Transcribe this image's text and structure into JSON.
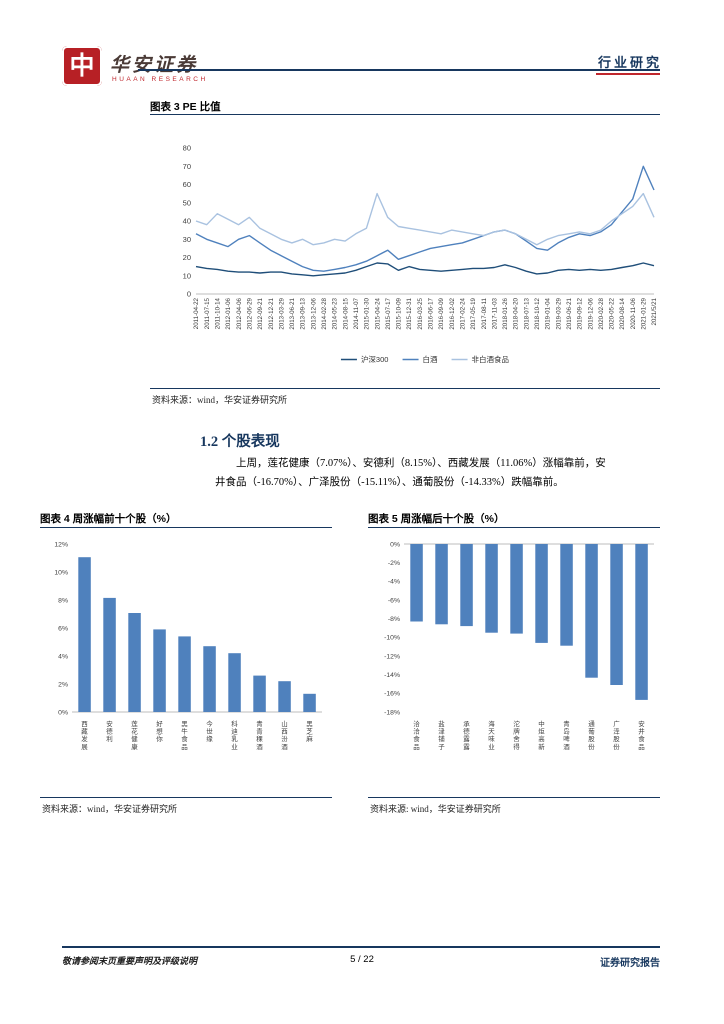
{
  "header": {
    "logo_char": "中",
    "brand_cn": "华安证券",
    "brand_en": "HUAAN RESEARCH",
    "report_type": "行业研究"
  },
  "section": {
    "heading": "1.2 个股表现",
    "paragraph": "上周，莲花健康（7.07%）、安德利（8.15%）、西藏发展（11.06%）涨幅靠前，安井食品（-16.70%）、广泽股份（-15.11%）、通葡股份（-14.33%）跌幅靠前。"
  },
  "sources": {
    "chart3": "资料来源：wind，华安证券研究所",
    "chart4": "资料来源：wind，华安证券研究所",
    "chart5": "资料来源: wind，华安证券研究所"
  },
  "footer": {
    "left": "敬请参阅末页重要声明及评级说明",
    "page": "5 / 22",
    "right": "证券研究报告"
  },
  "chart_data": [
    {
      "id": "pe-ratio",
      "type": "line",
      "title": "图表 3 PE 比值",
      "ylim": [
        0,
        80
      ],
      "ytick_step": 10,
      "grid": false,
      "legend_position": "bottom",
      "x": [
        "2011-04-22",
        "2011-07-15",
        "2011-10-14",
        "2012-01-06",
        "2012-04-06",
        "2012-06-29",
        "2012-09-21",
        "2012-12-21",
        "2013-03-29",
        "2013-06-21",
        "2013-09-13",
        "2013-12-06",
        "2014-02-28",
        "2014-05-23",
        "2014-08-15",
        "2014-11-07",
        "2015-01-30",
        "2015-04-24",
        "2015-07-17",
        "2015-10-09",
        "2015-12-31",
        "2016-03-25",
        "2016-06-17",
        "2016-09-09",
        "2016-12-02",
        "2017-02-24",
        "2017-05-19",
        "2017-08-11",
        "2017-11-03",
        "2018-01-26",
        "2018-04-20",
        "2018-07-13",
        "2018-10-12",
        "2019-01-04",
        "2019-03-29",
        "2019-06-21",
        "2019-09-12",
        "2019-12-06",
        "2020-02-28",
        "2020-05-22",
        "2020-08-14",
        "2020-11-06",
        "2021-01-29",
        "2021/5/21"
      ],
      "series": [
        {
          "name": "沪深300",
          "color": "#1f4e79",
          "values": [
            15,
            14,
            13.5,
            12.5,
            12,
            12,
            11.5,
            12,
            12,
            11,
            10.5,
            10,
            10.5,
            11,
            11.5,
            13,
            15,
            17,
            16.5,
            13,
            15,
            13.5,
            13,
            12.5,
            13,
            13.5,
            14,
            14,
            14.5,
            16,
            14.5,
            12.5,
            11,
            11.5,
            13,
            13.5,
            13,
            13.5,
            13,
            13.5,
            14.5,
            15.5,
            17,
            15.5
          ]
        },
        {
          "name": "白酒",
          "color": "#4f81bd",
          "values": [
            33,
            30,
            28,
            26,
            30,
            32,
            28,
            24,
            21,
            18,
            15,
            13,
            12.5,
            13.5,
            14.5,
            16,
            18,
            21,
            24,
            19,
            21,
            23,
            25,
            26,
            27,
            28,
            30,
            32,
            34,
            35,
            33,
            29,
            25,
            24,
            28,
            31,
            33,
            32,
            34,
            38,
            45,
            52,
            70,
            57
          ]
        },
        {
          "name": "非白酒食品",
          "color": "#a9c2e0",
          "values": [
            40,
            38,
            44,
            41,
            38,
            42,
            36,
            33,
            30,
            28,
            30,
            27,
            28,
            30,
            29,
            33,
            36,
            55,
            42,
            37,
            36,
            35,
            34,
            33,
            35,
            34,
            33,
            32,
            34,
            35,
            33,
            30,
            27,
            30,
            32,
            33,
            34,
            33,
            35,
            40,
            44,
            48,
            55,
            42
          ]
        }
      ]
    },
    {
      "id": "weekly-top10",
      "type": "bar",
      "title": "图表 4 周涨幅前十个股（%）",
      "bar_color": "#4f81bd",
      "ylim": [
        0,
        12
      ],
      "ytick_step": 2,
      "ytick_suffix": "%",
      "categories": [
        "西藏发展",
        "安德利",
        "莲花健康",
        "好想你",
        "黑牛食品",
        "今世缘",
        "科迪乳业",
        "青青稞酒",
        "山西汾酒",
        "黑芝麻"
      ],
      "values": [
        11.06,
        8.15,
        7.07,
        5.9,
        5.4,
        4.7,
        4.2,
        2.6,
        2.2,
        1.3
      ]
    },
    {
      "id": "weekly-bottom10",
      "type": "bar",
      "title": "图表 5 周涨幅后十个股（%）",
      "bar_color": "#4f81bd",
      "ylim": [
        -18,
        0
      ],
      "ytick_step": 2,
      "ytick_suffix": "%",
      "categories": [
        "洽洽食品",
        "盐津铺子",
        "承德露露",
        "海天味业",
        "沱牌舍得",
        "中炬高新",
        "青岛啤酒",
        "通葡股份",
        "广泽股份",
        "安井食品"
      ],
      "values": [
        -8.3,
        -8.6,
        -8.8,
        -9.5,
        -9.6,
        -10.6,
        -10.9,
        -14.33,
        -15.11,
        -16.7
      ]
    }
  ]
}
